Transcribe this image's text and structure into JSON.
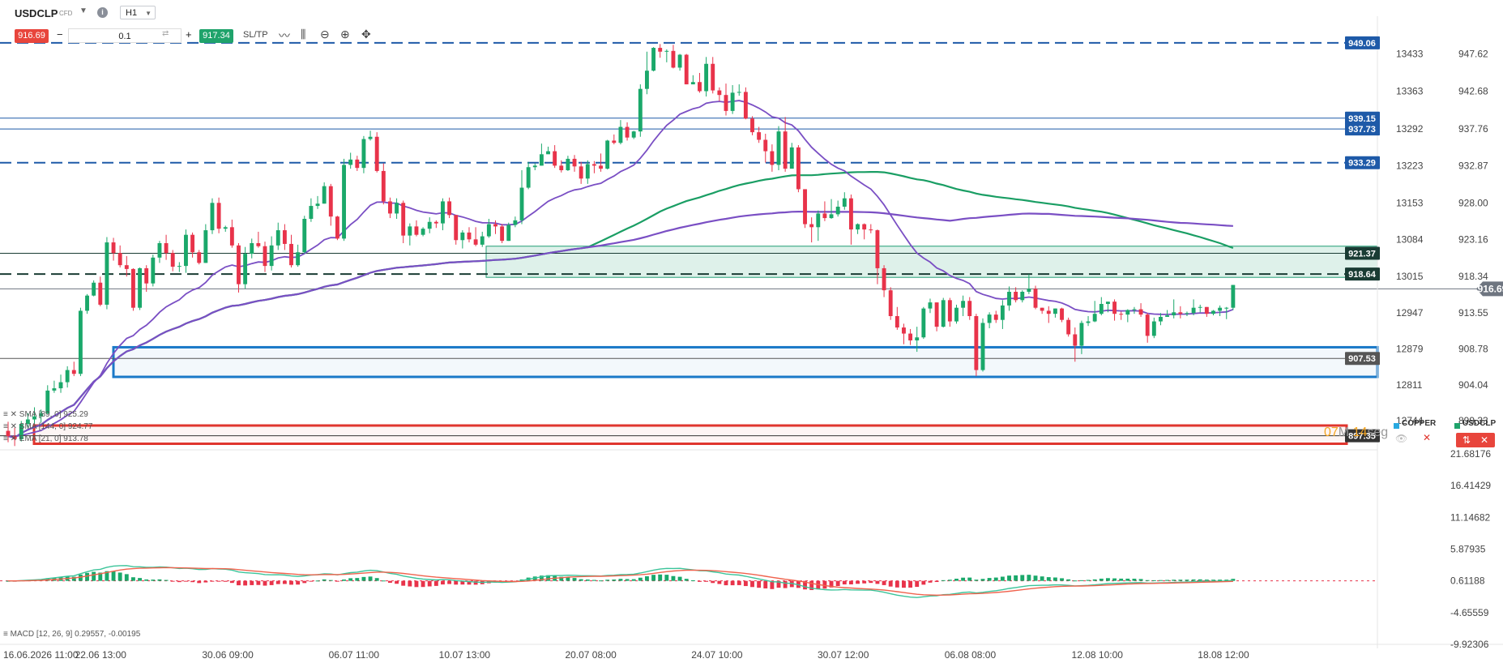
{
  "toolbar": {
    "symbol": "USDCLP",
    "symbol_type": "CFD",
    "timeframe": "H1",
    "sell_price": "916.69",
    "lot": "0.1",
    "buy_price": "917.34",
    "sltp_label": "SL/TP",
    "sell_color": "#e8453c",
    "buy_color": "#1fa36b"
  },
  "chart_data": {
    "type": "candlestick",
    "symbol": "USDCLP",
    "timeframe": "H1",
    "price_axis": {
      "range": [
        895.5,
        951.5
      ],
      "ticks": [
        "947.62",
        "942.68",
        "937.76",
        "932.87",
        "928.00",
        "923.16",
        "918.34",
        "913.55",
        "908.78",
        "904.04",
        "899.33"
      ]
    },
    "secondary_axis": {
      "ticks": [
        "13433",
        "13363",
        "13292",
        "13223",
        "13153",
        "13084",
        "13015",
        "12947",
        "12879",
        "12811",
        "12744"
      ]
    },
    "x_axis": {
      "ticks": [
        "16.06.2026 11:00",
        "22.06 13:00",
        "30.06 09:00",
        "06.07 11:00",
        "10.07 13:00",
        "20.07 08:00",
        "24.07 10:00",
        "30.07 12:00",
        "06.08 08:00",
        "12.08 10:00",
        "18.08 12:00"
      ]
    },
    "current_price": {
      "value": 916.69,
      "label": "916.69"
    },
    "candles_ohlc": [
      [
        898.0,
        897.3,
        899.2,
        896.5
      ],
      [
        897.3,
        896.9,
        898.4,
        896.0
      ],
      [
        896.9,
        898.9,
        899.3,
        896.6
      ],
      [
        898.9,
        899.5,
        900.3,
        898.5
      ],
      [
        899.5,
        899.9,
        901.1,
        899.0
      ],
      [
        899.9,
        900.3,
        900.8,
        899.1
      ],
      [
        900.3,
        903.3,
        904.0,
        900.2
      ],
      [
        903.3,
        903.6,
        904.6,
        903.0
      ],
      [
        903.6,
        904.4,
        905.4,
        903.0
      ],
      [
        904.4,
        906.0,
        906.5,
        903.7
      ],
      [
        906.0,
        905.5,
        907.1,
        905.2
      ],
      [
        905.5,
        913.8,
        914.2,
        905.2
      ],
      [
        913.8,
        915.8,
        916.0,
        913.4
      ],
      [
        915.8,
        917.5,
        917.8,
        915.7
      ],
      [
        917.5,
        914.6,
        918.3,
        914.4
      ],
      [
        914.6,
        922.8,
        923.5,
        914.0
      ],
      [
        922.8,
        921.4,
        923.4,
        920.4
      ],
      [
        921.4,
        919.8,
        922.4,
        919.5
      ],
      [
        919.8,
        919.3,
        921.0,
        918.3
      ],
      [
        919.3,
        914.2,
        919.4,
        913.8
      ],
      [
        914.2,
        919.4,
        919.5,
        913.9
      ],
      [
        919.4,
        917.4,
        919.8,
        916.3
      ],
      [
        917.4,
        920.8,
        921.2,
        917.0
      ],
      [
        920.8,
        922.7,
        923.0,
        920.1
      ],
      [
        922.7,
        921.4,
        923.8,
        920.5
      ],
      [
        921.4,
        919.6,
        921.8,
        919.0
      ],
      [
        919.6,
        919.7,
        920.2,
        918.9
      ],
      [
        919.7,
        923.8,
        924.5,
        918.8
      ],
      [
        923.8,
        921.5,
        924.1,
        920.8
      ],
      [
        921.5,
        920.1,
        921.8,
        919.9
      ],
      [
        920.1,
        924.4,
        925.2,
        920.1
      ],
      [
        924.4,
        928.0,
        928.6,
        923.9
      ],
      [
        928.0,
        924.6,
        928.7,
        924.0
      ],
      [
        924.6,
        924.8,
        925.0,
        924.2
      ],
      [
        924.8,
        922.4,
        925.8,
        922.1
      ],
      [
        922.4,
        917.3,
        922.7,
        916.2
      ],
      [
        917.3,
        921.3,
        922.2,
        916.7
      ],
      [
        921.3,
        922.7,
        923.3,
        920.7
      ],
      [
        922.7,
        922.3,
        924.2,
        922.1
      ],
      [
        922.3,
        919.7,
        922.9,
        918.9
      ],
      [
        919.7,
        922.4,
        923.6,
        919.1
      ],
      [
        922.4,
        924.4,
        925.4,
        921.8
      ],
      [
        924.4,
        922.6,
        925.2,
        921.8
      ],
      [
        922.6,
        919.8,
        923.8,
        919.5
      ],
      [
        919.8,
        921.5,
        922.5,
        919.6
      ],
      [
        921.5,
        925.9,
        926.3,
        921.3
      ],
      [
        925.9,
        927.6,
        928.6,
        925.5
      ],
      [
        927.6,
        927.9,
        928.9,
        927.2
      ],
      [
        927.9,
        930.2,
        930.7,
        927.9
      ],
      [
        930.2,
        926.2,
        930.5,
        925.0
      ],
      [
        926.2,
        923.3,
        926.3,
        923.1
      ],
      [
        923.3,
        933.0,
        933.8,
        923.0
      ],
      [
        933.0,
        933.7,
        934.6,
        932.5
      ],
      [
        933.7,
        932.6,
        934.2,
        932.2
      ],
      [
        932.6,
        936.4,
        936.8,
        931.9
      ],
      [
        936.4,
        936.7,
        937.5,
        936.2
      ],
      [
        936.7,
        932.2,
        937.3,
        932.0
      ],
      [
        932.2,
        928.2,
        933.2,
        927.8
      ],
      [
        928.2,
        926.6,
        928.7,
        926.0
      ],
      [
        926.6,
        928.0,
        928.6,
        925.9
      ],
      [
        928.0,
        923.7,
        928.3,
        922.7
      ],
      [
        923.7,
        924.9,
        925.3,
        922.4
      ],
      [
        924.9,
        923.8,
        925.7,
        923.6
      ],
      [
        923.8,
        924.6,
        924.8,
        923.6
      ],
      [
        924.6,
        925.5,
        926.1,
        924.0
      ],
      [
        925.5,
        925.3,
        925.7,
        924.7
      ],
      [
        925.3,
        928.2,
        928.6,
        924.4
      ],
      [
        928.2,
        926.4,
        928.7,
        926.0
      ],
      [
        926.4,
        923.1,
        926.4,
        922.5
      ],
      [
        923.1,
        924.1,
        924.4,
        922.0
      ],
      [
        924.1,
        923.2,
        924.8,
        922.8
      ],
      [
        923.2,
        922.5,
        924.8,
        922.3
      ],
      [
        922.5,
        923.6,
        924.2,
        922.2
      ],
      [
        923.6,
        925.2,
        925.9,
        923.4
      ],
      [
        925.2,
        924.9,
        925.7,
        923.9
      ],
      [
        924.9,
        923.0,
        925.2,
        922.7
      ],
      [
        923.0,
        925.1,
        925.4,
        923.0
      ],
      [
        925.1,
        925.7,
        926.2,
        924.8
      ],
      [
        925.7,
        930.0,
        932.3,
        925.2
      ],
      [
        930.0,
        932.7,
        933.4,
        929.8
      ],
      [
        932.7,
        932.9,
        933.2,
        932.3
      ],
      [
        932.9,
        934.4,
        935.8,
        932.9
      ],
      [
        934.4,
        934.8,
        935.4,
        934.6
      ],
      [
        934.8,
        932.9,
        935.6,
        932.6
      ],
      [
        932.9,
        932.3,
        933.6,
        932.0
      ],
      [
        932.3,
        933.8,
        934.2,
        932.2
      ],
      [
        933.8,
        932.8,
        934.3,
        932.1
      ],
      [
        932.8,
        931.2,
        933.4,
        930.5
      ],
      [
        931.2,
        933.1,
        933.6,
        930.5
      ],
      [
        933.1,
        932.9,
        933.5,
        931.9
      ],
      [
        932.9,
        932.5,
        934.5,
        932.1
      ],
      [
        932.5,
        936.2,
        936.3,
        932.4
      ],
      [
        936.2,
        935.9,
        937.0,
        935.7
      ],
      [
        935.9,
        938.0,
        938.9,
        935.7
      ],
      [
        938.0,
        936.6,
        938.6,
        936.2
      ],
      [
        936.6,
        937.4,
        937.5,
        936.4
      ],
      [
        937.4,
        943.0,
        943.6,
        936.7
      ],
      [
        943.0,
        945.4,
        947.9,
        942.3
      ],
      [
        945.4,
        948.4,
        948.5,
        945.3
      ],
      [
        948.4,
        947.9,
        948.9,
        947.1
      ],
      [
        947.9,
        948.0,
        948.2,
        946.5
      ],
      [
        948.0,
        945.8,
        948.8,
        945.7
      ],
      [
        945.8,
        947.5,
        947.6,
        945.4
      ],
      [
        947.5,
        943.6,
        947.6,
        943.6
      ],
      [
        943.6,
        943.9,
        944.8,
        943.6
      ],
      [
        943.9,
        942.7,
        945.1,
        942.5
      ],
      [
        942.7,
        946.3,
        947.2,
        942.0
      ],
      [
        946.3,
        942.8,
        947.2,
        942.4
      ],
      [
        942.8,
        942.2,
        943.2,
        941.4
      ],
      [
        942.2,
        940.1,
        943.7,
        939.5
      ],
      [
        940.1,
        942.5,
        943.5,
        939.7
      ],
      [
        942.5,
        942.6,
        943.6,
        942.1
      ],
      [
        942.6,
        939.1,
        943.2,
        939.0
      ],
      [
        939.1,
        937.3,
        939.4,
        936.9
      ],
      [
        937.3,
        936.3,
        938.0,
        935.9
      ],
      [
        936.3,
        934.8,
        937.1,
        933.3
      ],
      [
        934.8,
        933.0,
        935.7,
        932.1
      ],
      [
        933.0,
        937.4,
        938.1,
        932.3
      ],
      [
        937.4,
        932.5,
        939.3,
        932.1
      ],
      [
        932.5,
        935.3,
        935.9,
        932.6
      ],
      [
        935.3,
        929.8,
        935.6,
        929.4
      ],
      [
        929.8,
        925.2,
        929.8,
        924.7
      ],
      [
        925.2,
        924.8,
        926.1,
        922.8
      ],
      [
        924.8,
        926.6,
        927.0,
        923.0
      ],
      [
        926.6,
        926.0,
        928.2,
        925.6
      ],
      [
        926.0,
        926.5,
        928.5,
        925.9
      ],
      [
        926.5,
        927.5,
        928.3,
        926.2
      ],
      [
        927.5,
        928.6,
        929.4,
        927.1
      ],
      [
        928.6,
        924.5,
        929.1,
        922.5
      ],
      [
        924.5,
        925.2,
        925.3,
        923.9
      ],
      [
        925.2,
        924.5,
        925.3,
        923.2
      ],
      [
        924.5,
        924.4,
        925.2,
        924.0
      ],
      [
        924.4,
        919.4,
        924.5,
        917.3
      ],
      [
        919.4,
        916.5,
        919.8,
        915.6
      ],
      [
        916.5,
        913.1,
        916.9,
        912.6
      ],
      [
        913.1,
        911.6,
        914.3,
        911.3
      ],
      [
        911.6,
        910.8,
        912.1,
        909.4
      ],
      [
        910.8,
        909.9,
        911.4,
        909.3
      ],
      [
        909.9,
        910.3,
        911.7,
        908.4
      ],
      [
        910.3,
        914.1,
        914.3,
        910.1
      ],
      [
        914.1,
        914.9,
        915.4,
        913.5
      ],
      [
        914.9,
        911.7,
        914.9,
        911.1
      ],
      [
        911.7,
        915.2,
        915.5,
        911.6
      ],
      [
        915.2,
        912.4,
        915.5,
        911.7
      ],
      [
        912.4,
        914.2,
        914.6,
        912.1
      ],
      [
        914.2,
        915.1,
        915.8,
        913.1
      ],
      [
        915.1,
        913.1,
        915.6,
        912.6
      ],
      [
        913.1,
        906.0,
        913.4,
        905.2
      ],
      [
        906.0,
        912.2,
        912.8,
        905.8
      ],
      [
        912.2,
        913.3,
        913.6,
        911.5
      ],
      [
        913.3,
        912.6,
        913.8,
        912.2
      ],
      [
        912.6,
        914.5,
        915.2,
        911.4
      ],
      [
        914.5,
        916.3,
        917.0,
        913.8
      ],
      [
        916.3,
        915.2,
        916.9,
        914.9
      ],
      [
        915.2,
        916.3,
        916.5,
        914.9
      ],
      [
        916.3,
        916.7,
        918.6,
        916.0
      ],
      [
        916.7,
        914.2,
        917.1,
        914.0
      ],
      [
        914.2,
        913.8,
        914.2,
        913.4
      ],
      [
        913.8,
        913.4,
        914.4,
        912.2
      ],
      [
        913.4,
        914.1,
        914.1,
        912.9
      ],
      [
        914.1,
        912.6,
        914.2,
        912.3
      ],
      [
        912.6,
        910.7,
        912.9,
        910.4
      ],
      [
        910.7,
        909.2,
        911.6,
        907.1
      ],
      [
        909.2,
        912.2,
        912.5,
        908.1
      ],
      [
        912.2,
        912.4,
        913.1,
        911.8
      ],
      [
        912.4,
        913.4,
        915.1,
        912.3
      ],
      [
        913.4,
        914.7,
        915.6,
        913.2
      ],
      [
        914.7,
        915.0,
        915.0,
        913.6
      ],
      [
        915.0,
        913.4,
        915.3,
        912.5
      ],
      [
        913.4,
        913.3,
        913.7,
        912.6
      ],
      [
        913.3,
        913.9,
        914.0,
        912.3
      ],
      [
        913.9,
        914.0,
        914.3,
        913.4
      ],
      [
        914.0,
        913.3,
        914.8,
        913.0
      ],
      [
        913.3,
        910.5,
        913.5,
        909.6
      ],
      [
        910.5,
        912.4,
        912.9,
        910.2
      ],
      [
        912.4,
        913.0,
        913.5,
        911.9
      ],
      [
        913.0,
        913.2,
        913.9,
        913.0
      ],
      [
        913.2,
        913.6,
        915.3,
        912.8
      ],
      [
        913.6,
        913.4,
        914.4,
        912.8
      ],
      [
        913.4,
        913.5,
        913.7,
        913.1
      ],
      [
        913.5,
        914.2,
        915.3,
        913.2
      ],
      [
        914.2,
        914.3,
        914.6,
        913.6
      ],
      [
        914.3,
        913.4,
        914.3,
        913.0
      ],
      [
        913.4,
        913.8,
        913.9,
        913.2
      ],
      [
        913.8,
        914.2,
        914.5,
        913.1
      ],
      [
        914.2,
        914.2,
        914.3,
        912.7
      ],
      [
        914.2,
        917.2,
        917.2,
        913.9
      ]
    ],
    "horizontal_levels": [
      {
        "value": 949.06,
        "label": "949.06",
        "style": "dashed",
        "color": "#1e5aa8"
      },
      {
        "value": 939.15,
        "label": "939.15",
        "style": "solid",
        "color": "#1e5aa8"
      },
      {
        "value": 937.73,
        "label": "937.73",
        "style": "solid",
        "color": "#1e5aa8"
      },
      {
        "value": 933.29,
        "label": "933.29",
        "style": "dashed",
        "color": "#1e5aa8"
      },
      {
        "value": 921.37,
        "label": "921.37",
        "style": "solid",
        "color": "#1a3c34"
      },
      {
        "value": 918.64,
        "label": "918.64",
        "style": "dashed",
        "color": "#1a3c34"
      },
      {
        "value": 907.53,
        "label": "907.53",
        "style": "solid",
        "color": "#555555"
      },
      {
        "value": 897.35,
        "label": "897.35",
        "style": "solid",
        "color": "#333333"
      }
    ],
    "zones": [
      {
        "from": 918.2,
        "to": 922.3,
        "color": "#1f9e74",
        "kind": "filled"
      },
      {
        "from": 905.1,
        "to": 909.0,
        "color": "#1a79c8",
        "kind": "outline"
      },
      {
        "from": 896.3,
        "to": 898.7,
        "color": "#e0352e",
        "kind": "outline"
      }
    ],
    "indicators": [
      {
        "name": "SMA",
        "params": "[89, 0]",
        "value": "925.29"
      },
      {
        "name": "SMA",
        "params": "[144, 0]",
        "value": "924.77"
      },
      {
        "name": "EMA",
        "params": "[21, 0]",
        "value": "913.78"
      }
    ],
    "macd": {
      "label": "MACD [12, 26, 9] 0.29557, -0.00195",
      "axis_ticks": [
        "21.68176",
        "16.41429",
        "11.14682",
        "5.87935",
        "0.61188",
        "-4.65559",
        "-9.92306"
      ],
      "range": [
        -9.92306,
        21.68176
      ]
    },
    "countdown": {
      "minutes": "07",
      "minute_unit": "M",
      "seconds": "14",
      "second_unit": "seg"
    },
    "legend": [
      {
        "name": "COPPER",
        "color": "#29a9e0"
      },
      {
        "name": "USDCLP",
        "color": "#1fa36b"
      }
    ]
  }
}
